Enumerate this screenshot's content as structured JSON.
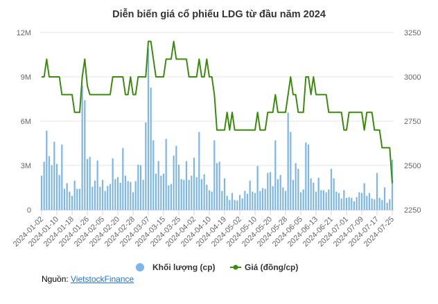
{
  "chart_data": {
    "type": "bar+line",
    "title": "Diễn biến giá cổ phiếu LDG từ đầu năm 2024",
    "categories": [
      "2024-01-02",
      "2024-01-03",
      "2024-01-04",
      "2024-01-05",
      "2024-01-08",
      "2024-01-09",
      "2024-01-10",
      "2024-01-11",
      "2024-01-12",
      "2024-01-15",
      "2024-01-16",
      "2024-01-17",
      "2024-01-18",
      "2024-01-19",
      "2024-01-22",
      "2024-01-23",
      "2024-01-24",
      "2024-01-25",
      "2024-01-26",
      "2024-01-29",
      "2024-01-30",
      "2024-01-31",
      "2024-02-01",
      "2024-02-02",
      "2024-02-05",
      "2024-02-06",
      "2024-02-07",
      "2024-02-15",
      "2024-02-16",
      "2024-02-19",
      "2024-02-20",
      "2024-02-21",
      "2024-02-22",
      "2024-02-23",
      "2024-02-26",
      "2024-02-27",
      "2024-02-28",
      "2024-02-29",
      "2024-03-01",
      "2024-03-04",
      "2024-03-05",
      "2024-03-06",
      "2024-03-07",
      "2024-03-08",
      "2024-03-11",
      "2024-03-12",
      "2024-03-13",
      "2024-03-14",
      "2024-03-15",
      "2024-03-18",
      "2024-03-19",
      "2024-03-20",
      "2024-03-21",
      "2024-03-22",
      "2024-03-25",
      "2024-03-26",
      "2024-03-27",
      "2024-03-28",
      "2024-03-29",
      "2024-04-01",
      "2024-04-02",
      "2024-04-03",
      "2024-04-04",
      "2024-04-05",
      "2024-04-08",
      "2024-04-09",
      "2024-04-10",
      "2024-04-11",
      "2024-04-12",
      "2024-04-15",
      "2024-04-16",
      "2024-04-17",
      "2024-04-19",
      "2024-04-22",
      "2024-04-23",
      "2024-04-24",
      "2024-04-25",
      "2024-04-26",
      "2024-05-02",
      "2024-05-03",
      "2024-05-06",
      "2024-05-07",
      "2024-05-08",
      "2024-05-09",
      "2024-05-10",
      "2024-05-13",
      "2024-05-14",
      "2024-05-15",
      "2024-05-16",
      "2024-05-17",
      "2024-05-20",
      "2024-05-21",
      "2024-05-22",
      "2024-05-23",
      "2024-05-24",
      "2024-05-27",
      "2024-05-28",
      "2024-05-29",
      "2024-05-30",
      "2024-05-31",
      "2024-06-03",
      "2024-06-04",
      "2024-06-05",
      "2024-06-06",
      "2024-06-07",
      "2024-06-10",
      "2024-06-11",
      "2024-06-12",
      "2024-06-13",
      "2024-06-14",
      "2024-06-17",
      "2024-06-18",
      "2024-06-19",
      "2024-06-20",
      "2024-06-21",
      "2024-06-24",
      "2024-06-25",
      "2024-06-26",
      "2024-06-27",
      "2024-06-28",
      "2024-07-01",
      "2024-07-02",
      "2024-07-03",
      "2024-07-04",
      "2024-07-05",
      "2024-07-08",
      "2024-07-09",
      "2024-07-10",
      "2024-07-11",
      "2024-07-12",
      "2024-07-15",
      "2024-07-16",
      "2024-07-17",
      "2024-07-18",
      "2024-07-19",
      "2024-07-22",
      "2024-07-23",
      "2024-07-24",
      "2024-07-25"
    ],
    "series": [
      {
        "name": "Khối lượng (cp)",
        "type": "bar",
        "axis": "left",
        "color": "#7cb5ec",
        "values": [
          2310000,
          3250000,
          5360000,
          3630000,
          3020000,
          4610000,
          3110000,
          2360000,
          4420000,
          1420000,
          1800000,
          1230000,
          950000,
          1980000,
          1420000,
          1420000,
          8410000,
          7420000,
          3440000,
          3580000,
          1560000,
          1980000,
          3340000,
          1560000,
          2030000,
          1280000,
          1610000,
          1750000,
          3480000,
          2080000,
          2220000,
          1840000,
          4190000,
          2310000,
          1940000,
          1890000,
          1190000,
          1940000,
          3060000,
          3020000,
          2030000,
          5920000,
          10940000,
          8270000,
          4700000,
          2450000,
          3300000,
          2310000,
          2450000,
          4800000,
          1660000,
          1750000,
          3670000,
          4330000,
          3060000,
          2080000,
          2030000,
          3300000,
          2030000,
          2310000,
          3530000,
          2220000,
          5270000,
          2080000,
          2410000,
          1700000,
          1330000,
          1230000,
          4700000,
          3160000,
          3250000,
          1280000,
          2130000,
          950000,
          670000,
          1140000,
          670000,
          630000,
          1000000,
          770000,
          1280000,
          1090000,
          1980000,
          1230000,
          1140000,
          2970000,
          1280000,
          1470000,
          1420000,
          2500000,
          2550000,
          1610000,
          4700000,
          2080000,
          2360000,
          1520000,
          1280000,
          6580000,
          5270000,
          2030000,
          3160000,
          2780000,
          1190000,
          1380000,
          4560000,
          4420000,
          2130000,
          1840000,
          1230000,
          2170000,
          1330000,
          1330000,
          1190000,
          1380000,
          2780000,
          2130000,
          1230000,
          1140000,
          770000,
          1330000,
          810000,
          860000,
          810000,
          580000,
          860000,
          1190000,
          1140000,
          1800000,
          950000,
          1140000,
          770000,
          720000,
          2500000,
          810000,
          670000,
          1520000,
          480000,
          720000,
          3390000
        ]
      },
      {
        "name": "Giá (đồng/cp)",
        "type": "line",
        "axis": "right",
        "color": "#3a8a0c",
        "values": [
          3000,
          3000,
          3100,
          3000,
          3000,
          3000,
          3000,
          3000,
          2900,
          2900,
          2900,
          2900,
          2900,
          2800,
          2800,
          2800,
          3000,
          3100,
          2950,
          2900,
          2900,
          2900,
          2900,
          2900,
          2900,
          2900,
          2900,
          2900,
          3000,
          3000,
          3000,
          3000,
          3000,
          2900,
          2900,
          3000,
          2900,
          2900,
          3000,
          3000,
          3000,
          3000,
          3200,
          3200,
          3100,
          3000,
          3000,
          3000,
          3000,
          3100,
          3100,
          3100,
          3200,
          3100,
          3100,
          3100,
          3100,
          3100,
          3000,
          3000,
          3000,
          3000,
          3100,
          3000,
          3000,
          3100,
          3000,
          3000,
          2900,
          2700,
          2700,
          2700,
          2700,
          2800,
          2700,
          2800,
          2700,
          2700,
          2700,
          2700,
          2700,
          2700,
          2700,
          2700,
          2700,
          2800,
          2700,
          2700,
          2700,
          2800,
          2800,
          2800,
          2900,
          2800,
          2800,
          2800,
          2800,
          2900,
          3000,
          2900,
          2900,
          2800,
          2800,
          2800,
          3000,
          3000,
          2900,
          3000,
          2900,
          2900,
          2900,
          2900,
          2900,
          2800,
          2800,
          2800,
          2800,
          2800,
          2800,
          2700,
          2700,
          2800,
          2800,
          2800,
          2800,
          2800,
          2800,
          2700,
          2800,
          2800,
          2800,
          2700,
          2700,
          2700,
          2600,
          2600,
          2600,
          2600,
          2400
        ]
      }
    ],
    "y_left": {
      "range": [
        0,
        12000000
      ],
      "tick_labels": [
        "0",
        "3M",
        "6M",
        "9M",
        "12M"
      ]
    },
    "y_right": {
      "range": [
        2250,
        3250
      ],
      "tick_labels": [
        "2250",
        "2500",
        "2750",
        "3000",
        "3250"
      ]
    },
    "x_tick_every": 6,
    "grid": true,
    "legend_position": "bottom"
  },
  "source": {
    "label": "Nguồn:",
    "link": "VietstockFinance"
  }
}
